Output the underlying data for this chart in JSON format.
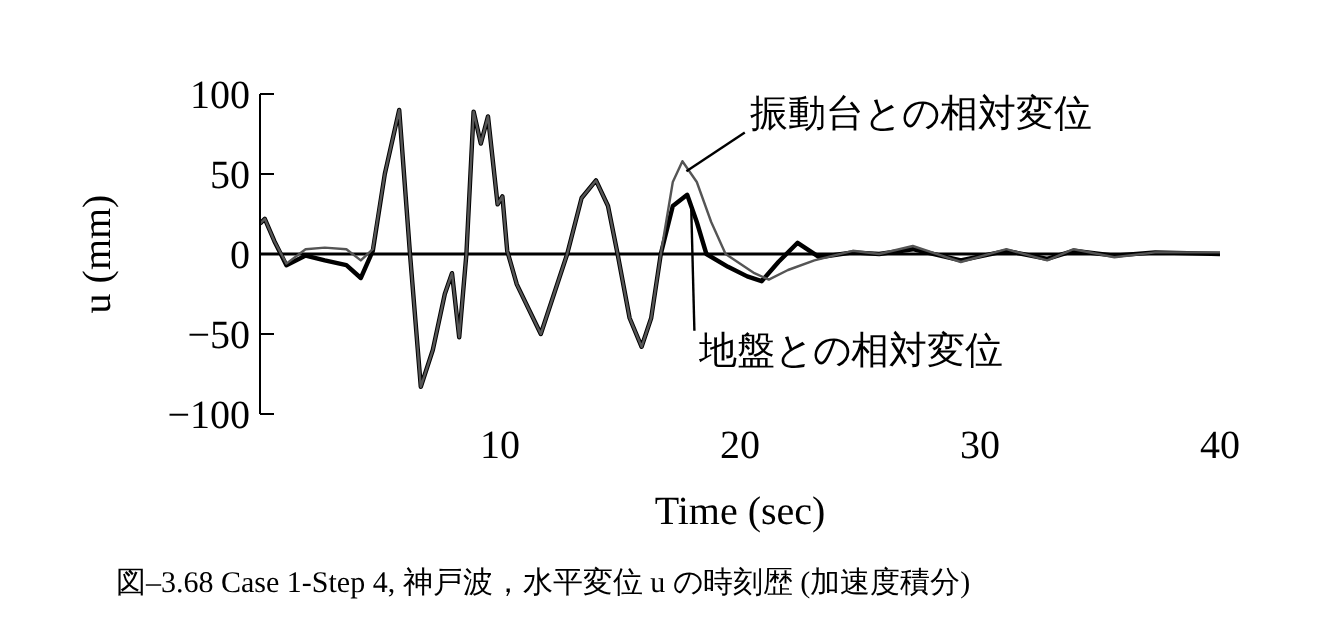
{
  "chart_data": {
    "type": "line",
    "xlabel": "Time (sec)",
    "ylabel": "u (mm)",
    "xlim": [
      0,
      40
    ],
    "xticks": [
      10,
      20,
      30,
      40
    ],
    "ylim": [
      -100,
      100
    ],
    "yticks": [
      -100,
      -50,
      0,
      50,
      100
    ],
    "grid": false,
    "legend": false,
    "marker": "none",
    "line_style": "solid",
    "ref_lines": [
      {
        "axis": "y",
        "value": 0,
        "color": "#000000"
      }
    ],
    "annotations": [
      "図–3.68  Case 1-Step 4, 神戸波，水平変位 u の時刻歴 (加速度積分)"
    ],
    "series": [
      {
        "name": "振動台との相対変位",
        "color": "#555555",
        "x": [
          0,
          0.2,
          0.6,
          1.1,
          1.9,
          2.7,
          3.6,
          4.2,
          4.7,
          5.2,
          5.8,
          6.25,
          6.7,
          7.2,
          7.7,
          8.0,
          8.3,
          8.6,
          8.9,
          9.2,
          9.5,
          9.9,
          10.1,
          10.3,
          10.7,
          11.7,
          12.8,
          13.4,
          14.0,
          14.5,
          14.9,
          15.4,
          15.9,
          16.3,
          16.7,
          17.2,
          17.6,
          18.2,
          18.8,
          19.4,
          20.6,
          21.2,
          22.0,
          23.1,
          24.7,
          25.8,
          27.2,
          29.2,
          31.1,
          32.8,
          33.9,
          35.6,
          37.3,
          40
        ],
        "values": [
          19,
          22,
          8,
          -6,
          3,
          4,
          3,
          -4,
          3,
          50,
          90,
          0,
          -83,
          -60,
          -25,
          -12,
          -52,
          0,
          89,
          69,
          86,
          31,
          36,
          2,
          -19,
          -50,
          0,
          35,
          46,
          30,
          0,
          -40,
          -58,
          -40,
          0,
          45,
          58,
          45,
          20,
          0,
          -12,
          -16,
          -10,
          -4,
          2,
          0,
          5,
          -5,
          3,
          -4,
          3,
          -2,
          1,
          1
        ]
      },
      {
        "name": "地盤との相対変位",
        "color": "#000000",
        "x": [
          0,
          0.2,
          0.6,
          1.1,
          1.9,
          2.7,
          3.6,
          4.2,
          4.7,
          5.2,
          5.8,
          6.25,
          6.7,
          7.2,
          7.7,
          8.0,
          8.3,
          8.6,
          8.9,
          9.2,
          9.5,
          9.9,
          10.1,
          10.3,
          10.7,
          11.7,
          12.8,
          13.4,
          14.0,
          14.5,
          14.9,
          15.4,
          15.9,
          16.3,
          16.7,
          17.2,
          17.8,
          18.2,
          18.6,
          19.5,
          20.3,
          20.9,
          21.6,
          22.4,
          23.3,
          24.7,
          25.8,
          27.2,
          29.2,
          31.1,
          32.8,
          33.9,
          35.6,
          37.3,
          40
        ],
        "values": [
          19,
          22,
          8,
          -7,
          -1,
          -4,
          -7,
          -15,
          2,
          50,
          90,
          0,
          -83,
          -60,
          -25,
          -12,
          -52,
          0,
          89,
          69,
          86,
          31,
          36,
          2,
          -19,
          -50,
          0,
          35,
          46,
          30,
          0,
          -40,
          -58,
          -40,
          0,
          30,
          37,
          20,
          0,
          -8,
          -14,
          -17,
          -5,
          7,
          -2,
          1,
          0,
          3,
          -4,
          2,
          -3,
          2,
          -1,
          1,
          0
        ]
      }
    ]
  }
}
